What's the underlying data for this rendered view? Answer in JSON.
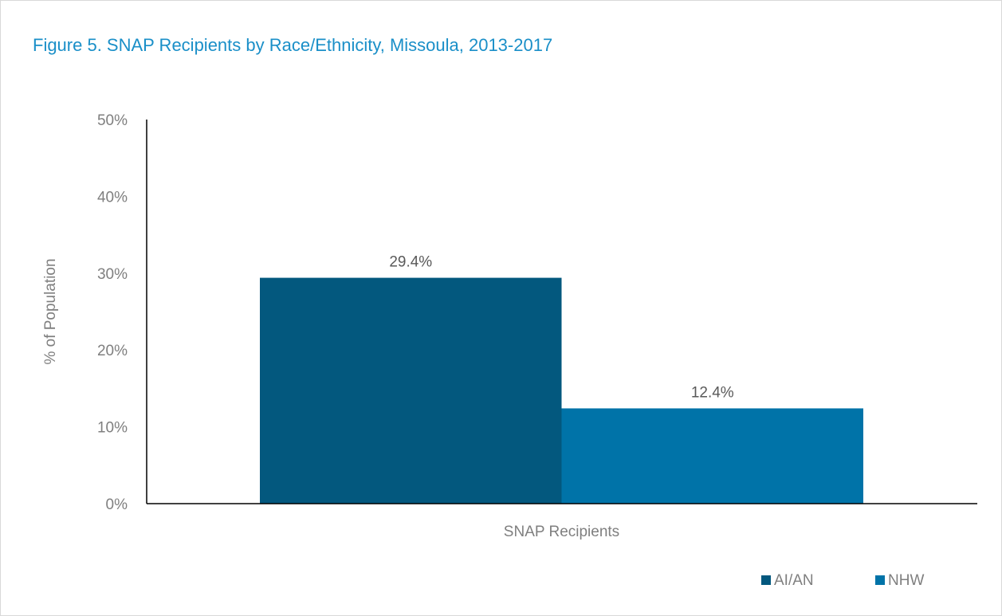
{
  "title": "Figure 5. SNAP Recipients by Race/Ethnicity, Missoula, 2013-2017",
  "chart_data": {
    "type": "bar",
    "title": "Figure 5. SNAP Recipients by Race/Ethnicity, Missoula, 2013-2017",
    "categories": [
      "SNAP Recipients"
    ],
    "series": [
      {
        "name": "AI/AN",
        "values": [
          29.4
        ],
        "color": "#03587e",
        "label": "29.4%"
      },
      {
        "name": "NHW",
        "values": [
          12.4
        ],
        "color": "#0073a8",
        "label": "12.4%"
      }
    ],
    "xlabel": "",
    "ylabel": "% of Population",
    "ylim": [
      0,
      50
    ],
    "yticks": [
      0,
      10,
      20,
      30,
      40,
      50
    ],
    "ytick_labels": [
      "0%",
      "10%",
      "20%",
      "30%",
      "40%",
      "50%"
    ],
    "grid": false,
    "legend_position": "bottom-right"
  }
}
